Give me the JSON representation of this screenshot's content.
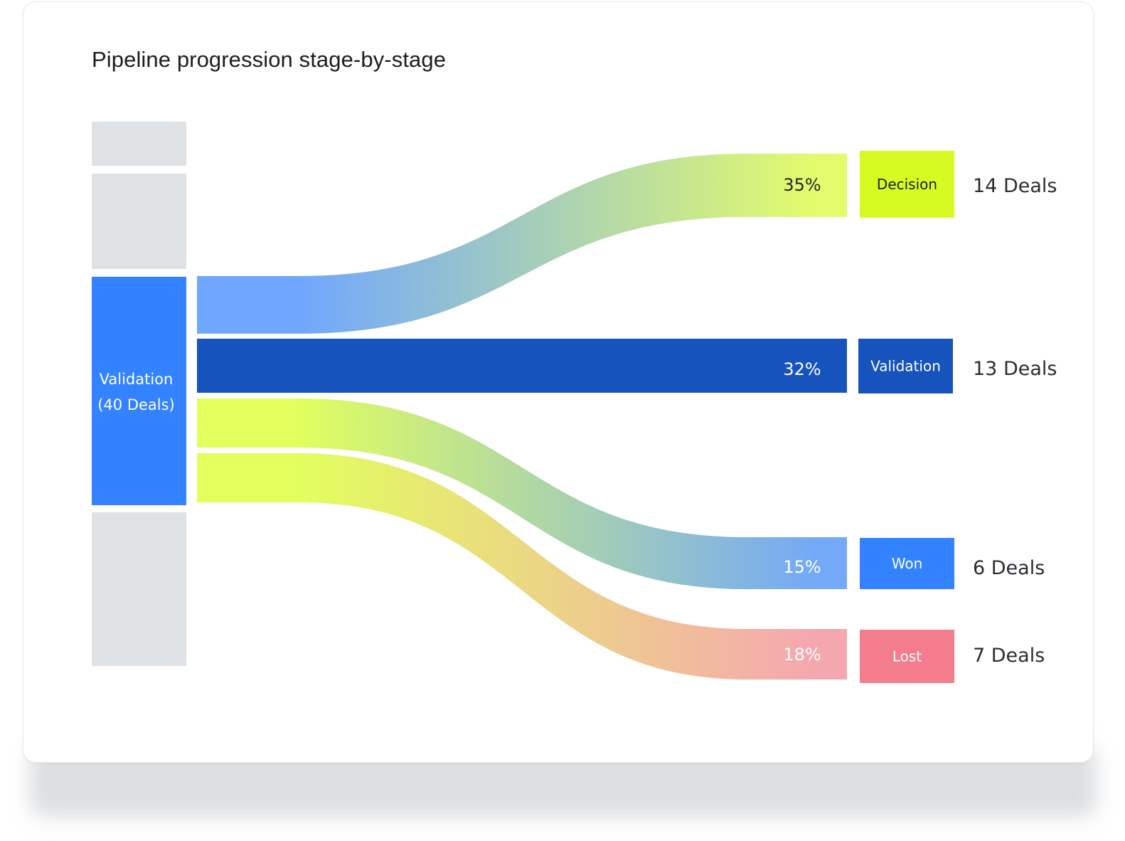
{
  "page": {
    "title": "Pipeline progression stage-by-stage"
  },
  "chart_data": {
    "type": "sankey",
    "title": "Pipeline progression stage-by-stage",
    "source": {
      "label": "Validation",
      "count_label": "(40 Deals)",
      "value": 40,
      "color": "#3382ff"
    },
    "source_column_placeholders": 3,
    "flows": [
      {
        "id": "decision",
        "pct_label": "35%",
        "target_label": "Decision",
        "count_label": "14 Deals",
        "value": 14,
        "color_start": "#6fa6ff",
        "color_end": "#e3fb6c",
        "target_color": "#d6fb22",
        "target_text_color": "#1c1e22",
        "pct_text_color": "#24262b"
      },
      {
        "id": "validation",
        "pct_label": "32%",
        "target_label": "Validation",
        "count_label": "13 Deals",
        "value": 13,
        "color_start": "#1653bc",
        "color_end": "#1653bc",
        "target_color": "#1653bc",
        "target_text_color": "#ffffff",
        "pct_text_color": "#ffffff"
      },
      {
        "id": "won",
        "pct_label": "15%",
        "target_label": "Won",
        "count_label": "6 Deals",
        "value": 6,
        "color_start": "#e2ff5d",
        "color_end": "#74a9f7",
        "target_color": "#3382ff",
        "target_text_color": "#ffffff",
        "pct_text_color": "#ffffff"
      },
      {
        "id": "lost",
        "pct_label": "18%",
        "target_label": "Lost",
        "count_label": "7 Deals",
        "value": 7,
        "color_start": "#e2ff5d",
        "color_end": "#f5a7b0",
        "target_color": "#f37c8d",
        "target_text_color": "#ffffff",
        "pct_text_color": "#ffffff"
      }
    ],
    "placeholder_color": "#dfe2e5"
  }
}
